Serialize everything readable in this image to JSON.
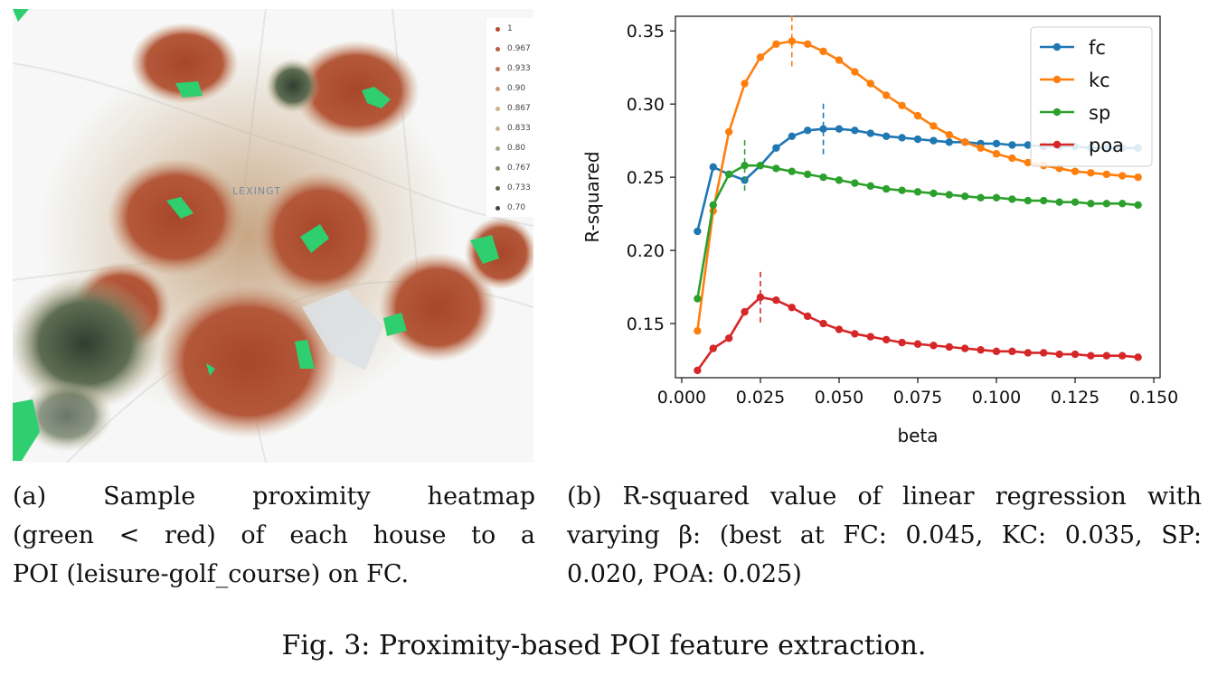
{
  "panel_a": {
    "map_label": "LEXINGT",
    "legend": [
      {
        "label": "1",
        "color": "#b34a2a"
      },
      {
        "label": "0.967",
        "color": "#b8613f"
      },
      {
        "label": "0.933",
        "color": "#c07a58"
      },
      {
        "label": "0.90",
        "color": "#c99a78"
      },
      {
        "label": "0.867",
        "color": "#cdb08e"
      },
      {
        "label": "0.833",
        "color": "#c5b694"
      },
      {
        "label": "0.80",
        "color": "#a8a684"
      },
      {
        "label": "0.767",
        "color": "#848d6c"
      },
      {
        "label": "0.733",
        "color": "#5e6d52"
      },
      {
        "label": "0.70",
        "color": "#3a4a3a"
      }
    ],
    "caption_lines": [
      "(a)  Sample  proximity  heatmap",
      "(green < red) of each house to a",
      "POI (leisure-golf_course) on FC."
    ]
  },
  "chart_data": {
    "type": "line",
    "xlabel": "beta",
    "ylabel": "R-squared",
    "xlim": [
      -0.002,
      0.152
    ],
    "ylim": [
      0.113,
      0.36
    ],
    "xticks": [
      0.0,
      0.025,
      0.05,
      0.075,
      0.1,
      0.125,
      0.15
    ],
    "xtick_labels": [
      "0.000",
      "0.025",
      "0.050",
      "0.075",
      "0.100",
      "0.125",
      "0.150"
    ],
    "yticks": [
      0.15,
      0.2,
      0.25,
      0.3,
      0.35
    ],
    "ytick_labels": [
      "0.15",
      "0.20",
      "0.25",
      "0.30",
      "0.35"
    ],
    "legend_position": "top-right",
    "x": [
      0.005,
      0.01,
      0.015,
      0.02,
      0.025,
      0.03,
      0.035,
      0.04,
      0.045,
      0.05,
      0.055,
      0.06,
      0.065,
      0.07,
      0.075,
      0.08,
      0.085,
      0.09,
      0.095,
      0.1,
      0.105,
      0.11,
      0.115,
      0.12,
      0.125,
      0.13,
      0.135,
      0.14,
      0.145
    ],
    "series": [
      {
        "name": "fc",
        "color": "#1f77b4",
        "best_beta": 0.045,
        "values": [
          0.213,
          0.257,
          0.252,
          0.248,
          0.258,
          0.27,
          0.278,
          0.282,
          0.283,
          0.283,
          0.282,
          0.28,
          0.278,
          0.277,
          0.276,
          0.275,
          0.274,
          0.274,
          0.273,
          0.273,
          0.272,
          0.272,
          0.271,
          0.271,
          0.271,
          0.27,
          0.27,
          0.27,
          0.27
        ]
      },
      {
        "name": "kc",
        "color": "#ff7f0e",
        "best_beta": 0.035,
        "values": [
          0.145,
          0.227,
          0.281,
          0.314,
          0.332,
          0.341,
          0.343,
          0.341,
          0.336,
          0.33,
          0.322,
          0.314,
          0.306,
          0.299,
          0.292,
          0.285,
          0.279,
          0.274,
          0.27,
          0.266,
          0.263,
          0.26,
          0.258,
          0.256,
          0.254,
          0.253,
          0.252,
          0.251,
          0.25
        ]
      },
      {
        "name": "sp",
        "color": "#2ca02c",
        "best_beta": 0.02,
        "values": [
          0.167,
          0.231,
          0.252,
          0.258,
          0.258,
          0.256,
          0.254,
          0.252,
          0.25,
          0.248,
          0.246,
          0.244,
          0.242,
          0.241,
          0.24,
          0.239,
          0.238,
          0.237,
          0.236,
          0.236,
          0.235,
          0.234,
          0.234,
          0.233,
          0.233,
          0.232,
          0.232,
          0.232,
          0.231
        ]
      },
      {
        "name": "poa",
        "color": "#d62728",
        "best_beta": 0.025,
        "values": [
          0.118,
          0.133,
          0.14,
          0.158,
          0.168,
          0.166,
          0.161,
          0.155,
          0.15,
          0.146,
          0.143,
          0.141,
          0.139,
          0.137,
          0.136,
          0.135,
          0.134,
          0.133,
          0.132,
          0.131,
          0.131,
          0.13,
          0.13,
          0.129,
          0.129,
          0.128,
          0.128,
          0.128,
          0.127
        ]
      }
    ]
  },
  "panel_b": {
    "caption_lines": [
      "(b) R-squared value of linear regression with",
      "varying β: (best at FC: 0.045, KC: 0.035, SP:",
      "0.020, POA: 0.025)"
    ]
  },
  "figure": {
    "caption": "Fig. 3: Proximity-based POI feature extraction."
  }
}
